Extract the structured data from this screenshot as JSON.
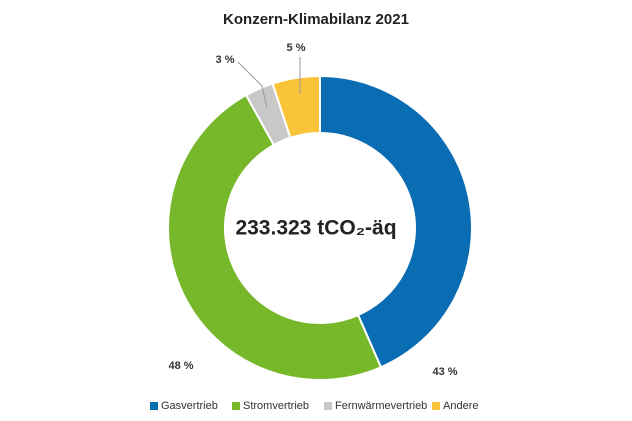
{
  "chart_data": {
    "type": "donut",
    "title": "Konzern-Klimabilanz 2021",
    "center_label": "233.323 tCO₂-äq",
    "categories": [
      "Gasvertrieb",
      "Stromvertrieb",
      "Fernwärmevertrieb",
      "Andere"
    ],
    "values": [
      43,
      48,
      3,
      5
    ],
    "value_labels": [
      "43 %",
      "48 %",
      "3 %",
      "5 %"
    ],
    "colors": [
      "#0a6db3",
      "#76b82a",
      "#c8c8c8",
      "#f9c33a"
    ],
    "legend": "bottom"
  }
}
